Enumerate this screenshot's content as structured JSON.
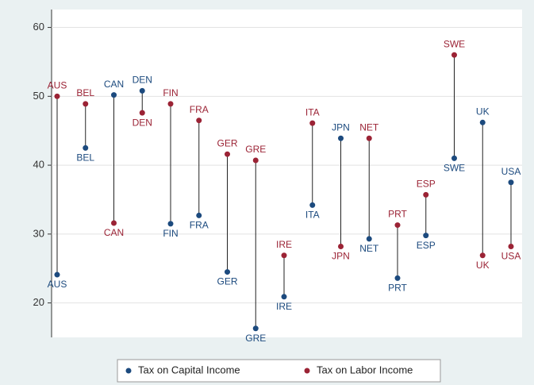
{
  "chart_data": {
    "type": "dumbbell",
    "categories": [
      "AUS",
      "BEL",
      "CAN",
      "DEN",
      "FIN",
      "FRA",
      "GER",
      "GRE",
      "IRE",
      "ITA",
      "JPN",
      "NET",
      "PRT",
      "ESP",
      "SWE",
      "UK",
      "USA"
    ],
    "series": [
      {
        "name": "Tax on Capital Income",
        "color": "#1c4a7e",
        "values": [
          24.1,
          42.5,
          50.2,
          50.8,
          31.5,
          32.7,
          24.5,
          16.3,
          20.9,
          34.2,
          43.9,
          29.3,
          23.6,
          29.8,
          41.0,
          46.2,
          37.5
        ]
      },
      {
        "name": "Tax on Labor Income",
        "color": "#9b2335",
        "values": [
          50.0,
          48.9,
          31.6,
          47.6,
          48.9,
          46.5,
          41.6,
          40.7,
          26.9,
          46.1,
          28.2,
          43.9,
          31.3,
          35.7,
          56.0,
          26.9,
          28.2
        ]
      }
    ],
    "ylim": [
      15,
      62.6
    ],
    "yticks": [
      20,
      30,
      40,
      50,
      60
    ],
    "grid": true,
    "legend": "bottom"
  }
}
